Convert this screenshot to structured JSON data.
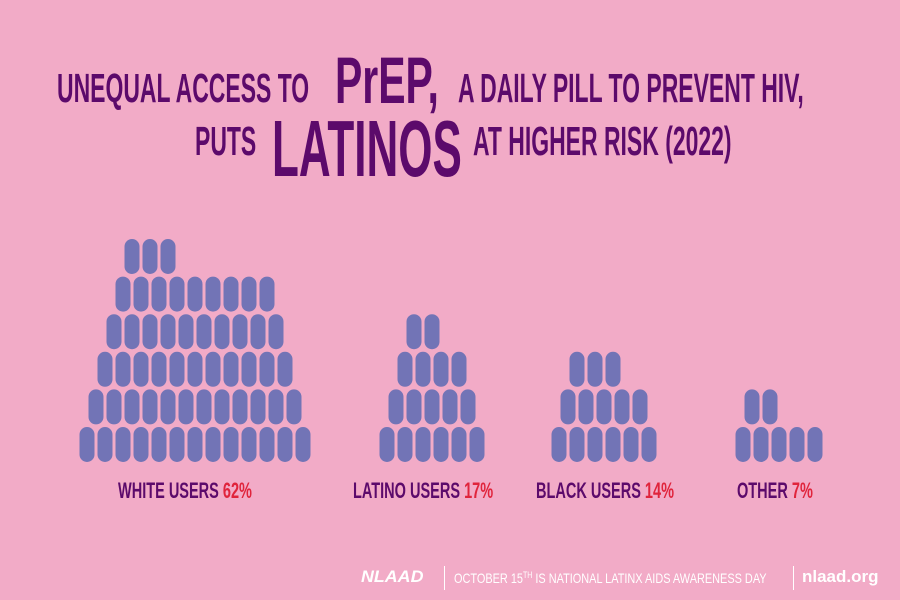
{
  "title": {
    "line1_before": "UNEQUAL ACCESS TO",
    "line1_emphasis": "PrEP,",
    "line1_after": "A DAILY PILL TO PREVENT HIV,",
    "line2_before": "PUTS",
    "line2_emphasis": "LATINOS",
    "line2_after": "AT HIGHER RISK (2022)"
  },
  "colors": {
    "background": "#f2abc7",
    "title": "#5c0a6b",
    "pill": "#7274b6",
    "percent": "#e0243c",
    "footer_text": "#ffffff"
  },
  "chart_data": {
    "type": "pictograph",
    "title": "Unequal access to PrEP, a daily pill to prevent HIV, puts Latinos at higher risk (2022)",
    "unit_icon": "pill-icon",
    "categories": [
      "White users",
      "Latino users",
      "Black users",
      "Other"
    ],
    "values_percent": [
      62,
      17,
      14,
      7
    ],
    "series": [
      {
        "name": "White users",
        "label": "WHITE USERS",
        "percent": "62%",
        "value": 62,
        "rows": [
          3,
          9,
          10,
          11,
          12,
          13
        ]
      },
      {
        "name": "Latino users",
        "label": "LATINO USERS",
        "percent": "17%",
        "value": 17,
        "rows": [
          2,
          4,
          5,
          6
        ]
      },
      {
        "name": "Black users",
        "label": "BLACK USERS",
        "percent": "14%",
        "value": 14,
        "rows": [
          3,
          5,
          6
        ]
      },
      {
        "name": "Other",
        "label": "OTHER",
        "percent": "7%",
        "value": 7,
        "rows": [
          2,
          5
        ]
      }
    ]
  },
  "footer": {
    "logo": "NLAAD",
    "text_before": "OCTOBER 15",
    "text_sup": "TH",
    "text_after": " IS NATIONAL LATINX AIDS AWARENESS DAY",
    "url": "nlaad.org"
  }
}
